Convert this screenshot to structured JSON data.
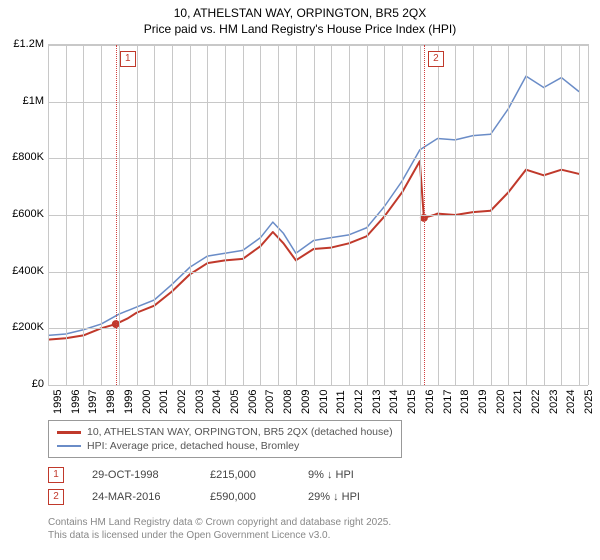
{
  "title": {
    "line1": "10, ATHELSTAN WAY, ORPINGTON, BR5 2QX",
    "line2": "Price paid vs. HM Land Registry's House Price Index (HPI)",
    "fontsize": 12,
    "color": "#000000"
  },
  "chart": {
    "type": "line",
    "background_color": "#ffffff",
    "grid_color": "#c8c8c8",
    "x": {
      "min": 1995,
      "max": 2025.5,
      "ticks": [
        1995,
        1996,
        1997,
        1998,
        1999,
        2000,
        2001,
        2002,
        2003,
        2004,
        2005,
        2006,
        2007,
        2008,
        2009,
        2010,
        2011,
        2012,
        2013,
        2014,
        2015,
        2016,
        2017,
        2018,
        2019,
        2020,
        2021,
        2022,
        2023,
        2024,
        2025
      ]
    },
    "y": {
      "min": 0,
      "max": 1200000,
      "ticks": [
        0,
        200000,
        400000,
        600000,
        800000,
        1000000,
        1200000
      ],
      "tick_labels": [
        "£0",
        "£200K",
        "£400K",
        "£600K",
        "£800K",
        "£1M",
        "£1.2M"
      ]
    },
    "series": [
      {
        "name": "10, ATHELSTAN WAY, ORPINGTON, BR5 2QX (detached house)",
        "color": "#c0392b",
        "width": 2,
        "points": [
          [
            1995,
            160000
          ],
          [
            1996,
            165000
          ],
          [
            1997,
            175000
          ],
          [
            1998,
            200000
          ],
          [
            1998.83,
            215000
          ],
          [
            1999.5,
            235000
          ],
          [
            2000,
            255000
          ],
          [
            2001,
            280000
          ],
          [
            2002,
            330000
          ],
          [
            2003,
            390000
          ],
          [
            2004,
            430000
          ],
          [
            2005,
            440000
          ],
          [
            2006,
            445000
          ],
          [
            2007,
            490000
          ],
          [
            2007.7,
            540000
          ],
          [
            2008.3,
            500000
          ],
          [
            2009,
            440000
          ],
          [
            2010,
            480000
          ],
          [
            2011,
            485000
          ],
          [
            2012,
            500000
          ],
          [
            2013,
            525000
          ],
          [
            2014,
            595000
          ],
          [
            2015,
            680000
          ],
          [
            2016,
            790000
          ],
          [
            2016.23,
            590000
          ],
          [
            2016.8,
            600000
          ],
          [
            2017,
            605000
          ],
          [
            2018,
            600000
          ],
          [
            2019,
            610000
          ],
          [
            2020,
            615000
          ],
          [
            2021,
            680000
          ],
          [
            2022,
            760000
          ],
          [
            2023,
            740000
          ],
          [
            2024,
            760000
          ],
          [
            2025,
            745000
          ]
        ]
      },
      {
        "name": "HPI: Average price, detached house, Bromley",
        "color": "#6a8cc7",
        "width": 1.5,
        "points": [
          [
            1995,
            175000
          ],
          [
            1996,
            180000
          ],
          [
            1997,
            195000
          ],
          [
            1998,
            215000
          ],
          [
            1999,
            250000
          ],
          [
            2000,
            275000
          ],
          [
            2001,
            300000
          ],
          [
            2002,
            355000
          ],
          [
            2003,
            415000
          ],
          [
            2004,
            455000
          ],
          [
            2005,
            465000
          ],
          [
            2006,
            475000
          ],
          [
            2007,
            520000
          ],
          [
            2007.7,
            575000
          ],
          [
            2008.3,
            535000
          ],
          [
            2009,
            465000
          ],
          [
            2010,
            510000
          ],
          [
            2011,
            520000
          ],
          [
            2012,
            530000
          ],
          [
            2013,
            555000
          ],
          [
            2014,
            630000
          ],
          [
            2015,
            720000
          ],
          [
            2016,
            830000
          ],
          [
            2017,
            870000
          ],
          [
            2018,
            865000
          ],
          [
            2019,
            880000
          ],
          [
            2020,
            885000
          ],
          [
            2021,
            975000
          ],
          [
            2022,
            1090000
          ],
          [
            2023,
            1050000
          ],
          [
            2024,
            1085000
          ],
          [
            2025,
            1035000
          ]
        ]
      }
    ],
    "sale_markers": [
      {
        "id": "1",
        "year": 1998.83,
        "price": 215000
      },
      {
        "id": "2",
        "year": 2016.23,
        "price": 590000
      }
    ]
  },
  "legend": {
    "rows": [
      {
        "color": "#c0392b",
        "label": "10, ATHELSTAN WAY, ORPINGTON, BR5 2QX (detached house)"
      },
      {
        "color": "#6a8cc7",
        "label": "HPI: Average price, detached house, Bromley"
      }
    ]
  },
  "sales": [
    {
      "id": "1",
      "date": "29-OCT-1998",
      "price": "£215,000",
      "diff": "9% ↓ HPI"
    },
    {
      "id": "2",
      "date": "24-MAR-2016",
      "price": "£590,000",
      "diff": "29% ↓ HPI"
    }
  ],
  "footer": {
    "line1": "Contains HM Land Registry data © Crown copyright and database right 2025.",
    "line2": "This data is licensed under the Open Government Licence v3.0."
  }
}
